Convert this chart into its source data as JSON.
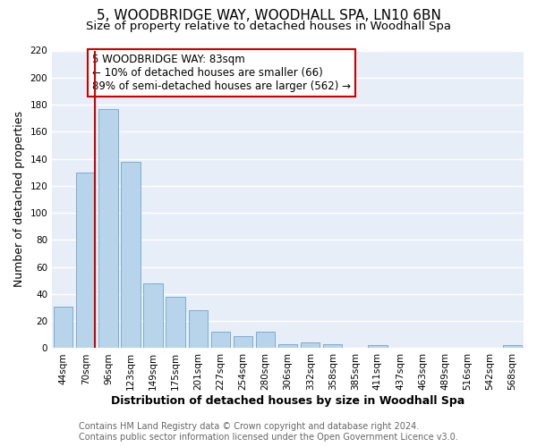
{
  "title": "5, WOODBRIDGE WAY, WOODHALL SPA, LN10 6BN",
  "subtitle": "Size of property relative to detached houses in Woodhall Spa",
  "xlabel": "Distribution of detached houses by size in Woodhall Spa",
  "ylabel": "Number of detached properties",
  "bar_labels": [
    "44sqm",
    "70sqm",
    "96sqm",
    "123sqm",
    "149sqm",
    "175sqm",
    "201sqm",
    "227sqm",
    "254sqm",
    "280sqm",
    "306sqm",
    "332sqm",
    "358sqm",
    "385sqm",
    "411sqm",
    "437sqm",
    "463sqm",
    "489sqm",
    "516sqm",
    "542sqm",
    "568sqm"
  ],
  "bar_heights": [
    31,
    130,
    177,
    138,
    48,
    38,
    28,
    12,
    9,
    12,
    3,
    4,
    3,
    0,
    2,
    0,
    0,
    0,
    0,
    0,
    2
  ],
  "bar_color": "#b8d4ea",
  "bar_edge_color": "#7aaed0",
  "vline_color": "#cc0000",
  "ylim": [
    0,
    220
  ],
  "yticks": [
    0,
    20,
    40,
    60,
    80,
    100,
    120,
    140,
    160,
    180,
    200,
    220
  ],
  "annotation_title": "5 WOODBRIDGE WAY: 83sqm",
  "annotation_line1": "← 10% of detached houses are smaller (66)",
  "annotation_line2": "89% of semi-detached houses are larger (562) →",
  "annotation_box_color": "#ffffff",
  "annotation_box_edge": "#cc0000",
  "footer_line1": "Contains HM Land Registry data © Crown copyright and database right 2024.",
  "footer_line2": "Contains public sector information licensed under the Open Government Licence v3.0.",
  "bg_color": "#ffffff",
  "plot_bg_color": "#e8eef8",
  "grid_color": "#ffffff",
  "title_fontsize": 11,
  "subtitle_fontsize": 9.5,
  "axis_label_fontsize": 9,
  "tick_fontsize": 7.5,
  "footer_fontsize": 7.0
}
